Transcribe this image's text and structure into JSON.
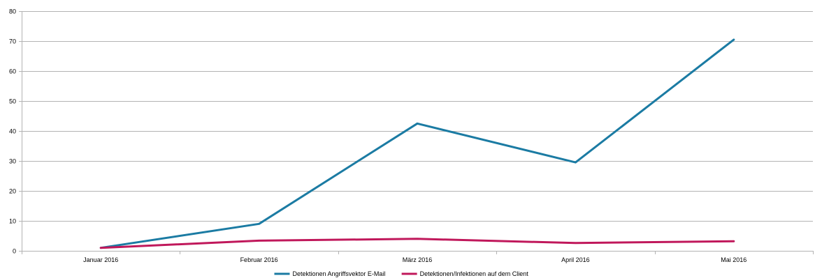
{
  "chart_data": {
    "type": "line",
    "categories": [
      "Januar 2016",
      "Februar 2016",
      "März 2016",
      "April 2016",
      "Mai 2016"
    ],
    "series": [
      {
        "name": "Detektionen Angriffsvektor E-Mail",
        "color": "#1b7ba3",
        "values": [
          1,
          9,
          42.5,
          29.5,
          70.5
        ]
      },
      {
        "name": "Detektionen/Infektionen auf dem Client",
        "color": "#c0185b",
        "values": [
          1,
          3.4,
          4,
          2.6,
          3.2
        ]
      }
    ],
    "ylim": [
      0,
      80
    ],
    "yticks": [
      0,
      10,
      20,
      30,
      40,
      50,
      60,
      70,
      80
    ],
    "grid": true,
    "legend": "bottom",
    "title": "",
    "xlabel": "",
    "ylabel": ""
  }
}
